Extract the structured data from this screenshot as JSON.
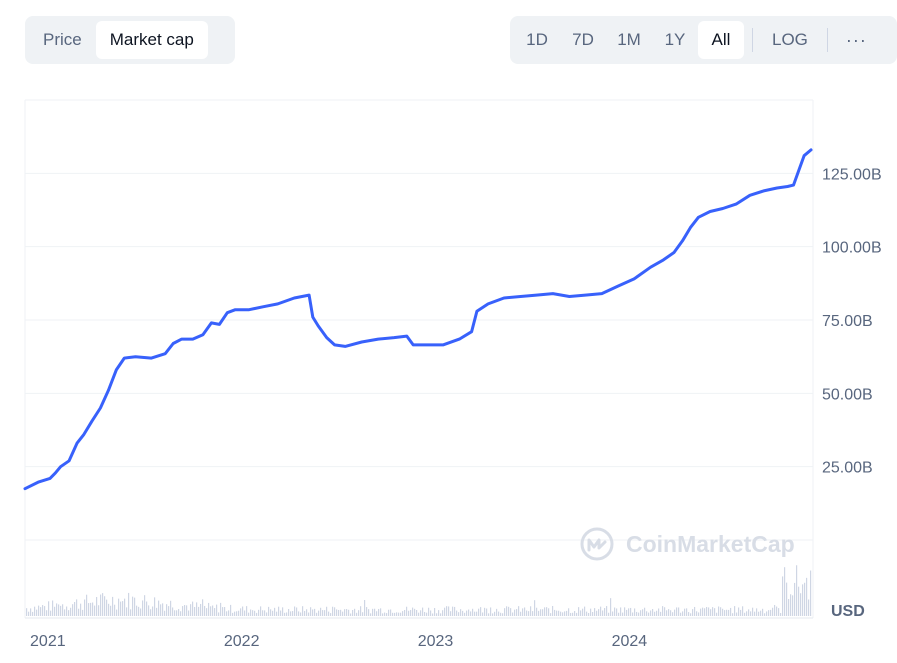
{
  "toolbar": {
    "metric_tabs": [
      {
        "label": "Price",
        "active": false
      },
      {
        "label": "Market cap",
        "active": true
      }
    ],
    "range_tabs": [
      {
        "label": "1D",
        "active": false
      },
      {
        "label": "7D",
        "active": false
      },
      {
        "label": "1M",
        "active": false
      },
      {
        "label": "1Y",
        "active": false
      },
      {
        "label": "All",
        "active": true
      }
    ],
    "log_label": "LOG",
    "more_label": "···"
  },
  "watermark": "CoinMarketCap",
  "colors": {
    "line": "#3861fb",
    "grid": "#eff2f5",
    "volume": "#cfd6e4",
    "text": "#58667e"
  },
  "chart_data": {
    "type": "line",
    "y_axis_position": "right",
    "unit_label": "USD",
    "xlabel": "",
    "ylabel": "",
    "ylim": [
      0,
      150
    ],
    "y_ticks": [
      {
        "value": 25,
        "label": "25.00B"
      },
      {
        "value": 50,
        "label": "50.00B"
      },
      {
        "value": 75,
        "label": "75.00B"
      },
      {
        "value": 100,
        "label": "100.00B"
      },
      {
        "value": 125,
        "label": "125.00B"
      }
    ],
    "xlim": [
      "2020-11-19",
      "2024-12-08"
    ],
    "x_ticks": [
      {
        "value": "2021-01-01",
        "label": "2021"
      },
      {
        "value": "2022-01-01",
        "label": "2022"
      },
      {
        "value": "2023-01-01",
        "label": "2023"
      },
      {
        "value": "2024-01-01",
        "label": "2024"
      }
    ],
    "grid": true,
    "series": [
      {
        "points": [
          [
            "2020-11-19",
            17.5
          ],
          [
            "2020-12-15",
            19.8
          ],
          [
            "2021-01-05",
            21.0
          ],
          [
            "2021-01-15",
            22.8
          ],
          [
            "2021-01-25",
            25.0
          ],
          [
            "2021-02-10",
            27.0
          ],
          [
            "2021-02-25",
            33.0
          ],
          [
            "2021-03-10",
            36.0
          ],
          [
            "2021-03-25",
            40.5
          ],
          [
            "2021-04-10",
            45.0
          ],
          [
            "2021-04-25",
            51.0
          ],
          [
            "2021-05-10",
            58.0
          ],
          [
            "2021-05-25",
            62.0
          ],
          [
            "2021-06-15",
            62.5
          ],
          [
            "2021-07-15",
            62.0
          ],
          [
            "2021-08-10",
            63.5
          ],
          [
            "2021-08-25",
            67.0
          ],
          [
            "2021-09-10",
            68.5
          ],
          [
            "2021-10-01",
            68.5
          ],
          [
            "2021-10-20",
            70.0
          ],
          [
            "2021-11-05",
            74.0
          ],
          [
            "2021-11-20",
            73.5
          ],
          [
            "2021-12-05",
            77.5
          ],
          [
            "2021-12-20",
            78.5
          ],
          [
            "2022-01-15",
            78.5
          ],
          [
            "2022-02-10",
            79.5
          ],
          [
            "2022-03-10",
            80.5
          ],
          [
            "2022-04-10",
            82.5
          ],
          [
            "2022-05-08",
            83.5
          ],
          [
            "2022-05-15",
            76.0
          ],
          [
            "2022-05-25",
            73.0
          ],
          [
            "2022-06-10",
            69.0
          ],
          [
            "2022-06-25",
            66.5
          ],
          [
            "2022-07-15",
            66.0
          ],
          [
            "2022-08-15",
            67.5
          ],
          [
            "2022-09-15",
            68.5
          ],
          [
            "2022-10-15",
            69.0
          ],
          [
            "2022-11-08",
            69.5
          ],
          [
            "2022-11-20",
            66.5
          ],
          [
            "2022-12-15",
            66.5
          ],
          [
            "2023-01-15",
            66.5
          ],
          [
            "2023-02-15",
            68.5
          ],
          [
            "2023-03-10",
            71.0
          ],
          [
            "2023-03-20",
            78.0
          ],
          [
            "2023-04-10",
            80.5
          ],
          [
            "2023-05-10",
            82.5
          ],
          [
            "2023-06-10",
            83.0
          ],
          [
            "2023-07-10",
            83.5
          ],
          [
            "2023-08-10",
            84.0
          ],
          [
            "2023-09-10",
            83.0
          ],
          [
            "2023-10-10",
            83.5
          ],
          [
            "2023-11-10",
            84.0
          ],
          [
            "2023-12-10",
            86.5
          ],
          [
            "2024-01-10",
            89.0
          ],
          [
            "2024-02-10",
            93.0
          ],
          [
            "2024-03-05",
            95.5
          ],
          [
            "2024-03-25",
            98.0
          ],
          [
            "2024-04-10",
            102.0
          ],
          [
            "2024-04-25",
            106.5
          ],
          [
            "2024-05-10",
            110.0
          ],
          [
            "2024-06-01",
            112.0
          ],
          [
            "2024-06-25",
            113.0
          ],
          [
            "2024-07-20",
            114.5
          ],
          [
            "2024-08-15",
            117.5
          ],
          [
            "2024-09-10",
            119.0
          ],
          [
            "2024-10-05",
            120.0
          ],
          [
            "2024-10-25",
            120.5
          ],
          [
            "2024-11-05",
            121.0
          ],
          [
            "2024-11-15",
            126.0
          ],
          [
            "2024-11-25",
            131.0
          ],
          [
            "2024-12-08",
            133.0
          ]
        ]
      }
    ],
    "volume_series_visible": true
  }
}
